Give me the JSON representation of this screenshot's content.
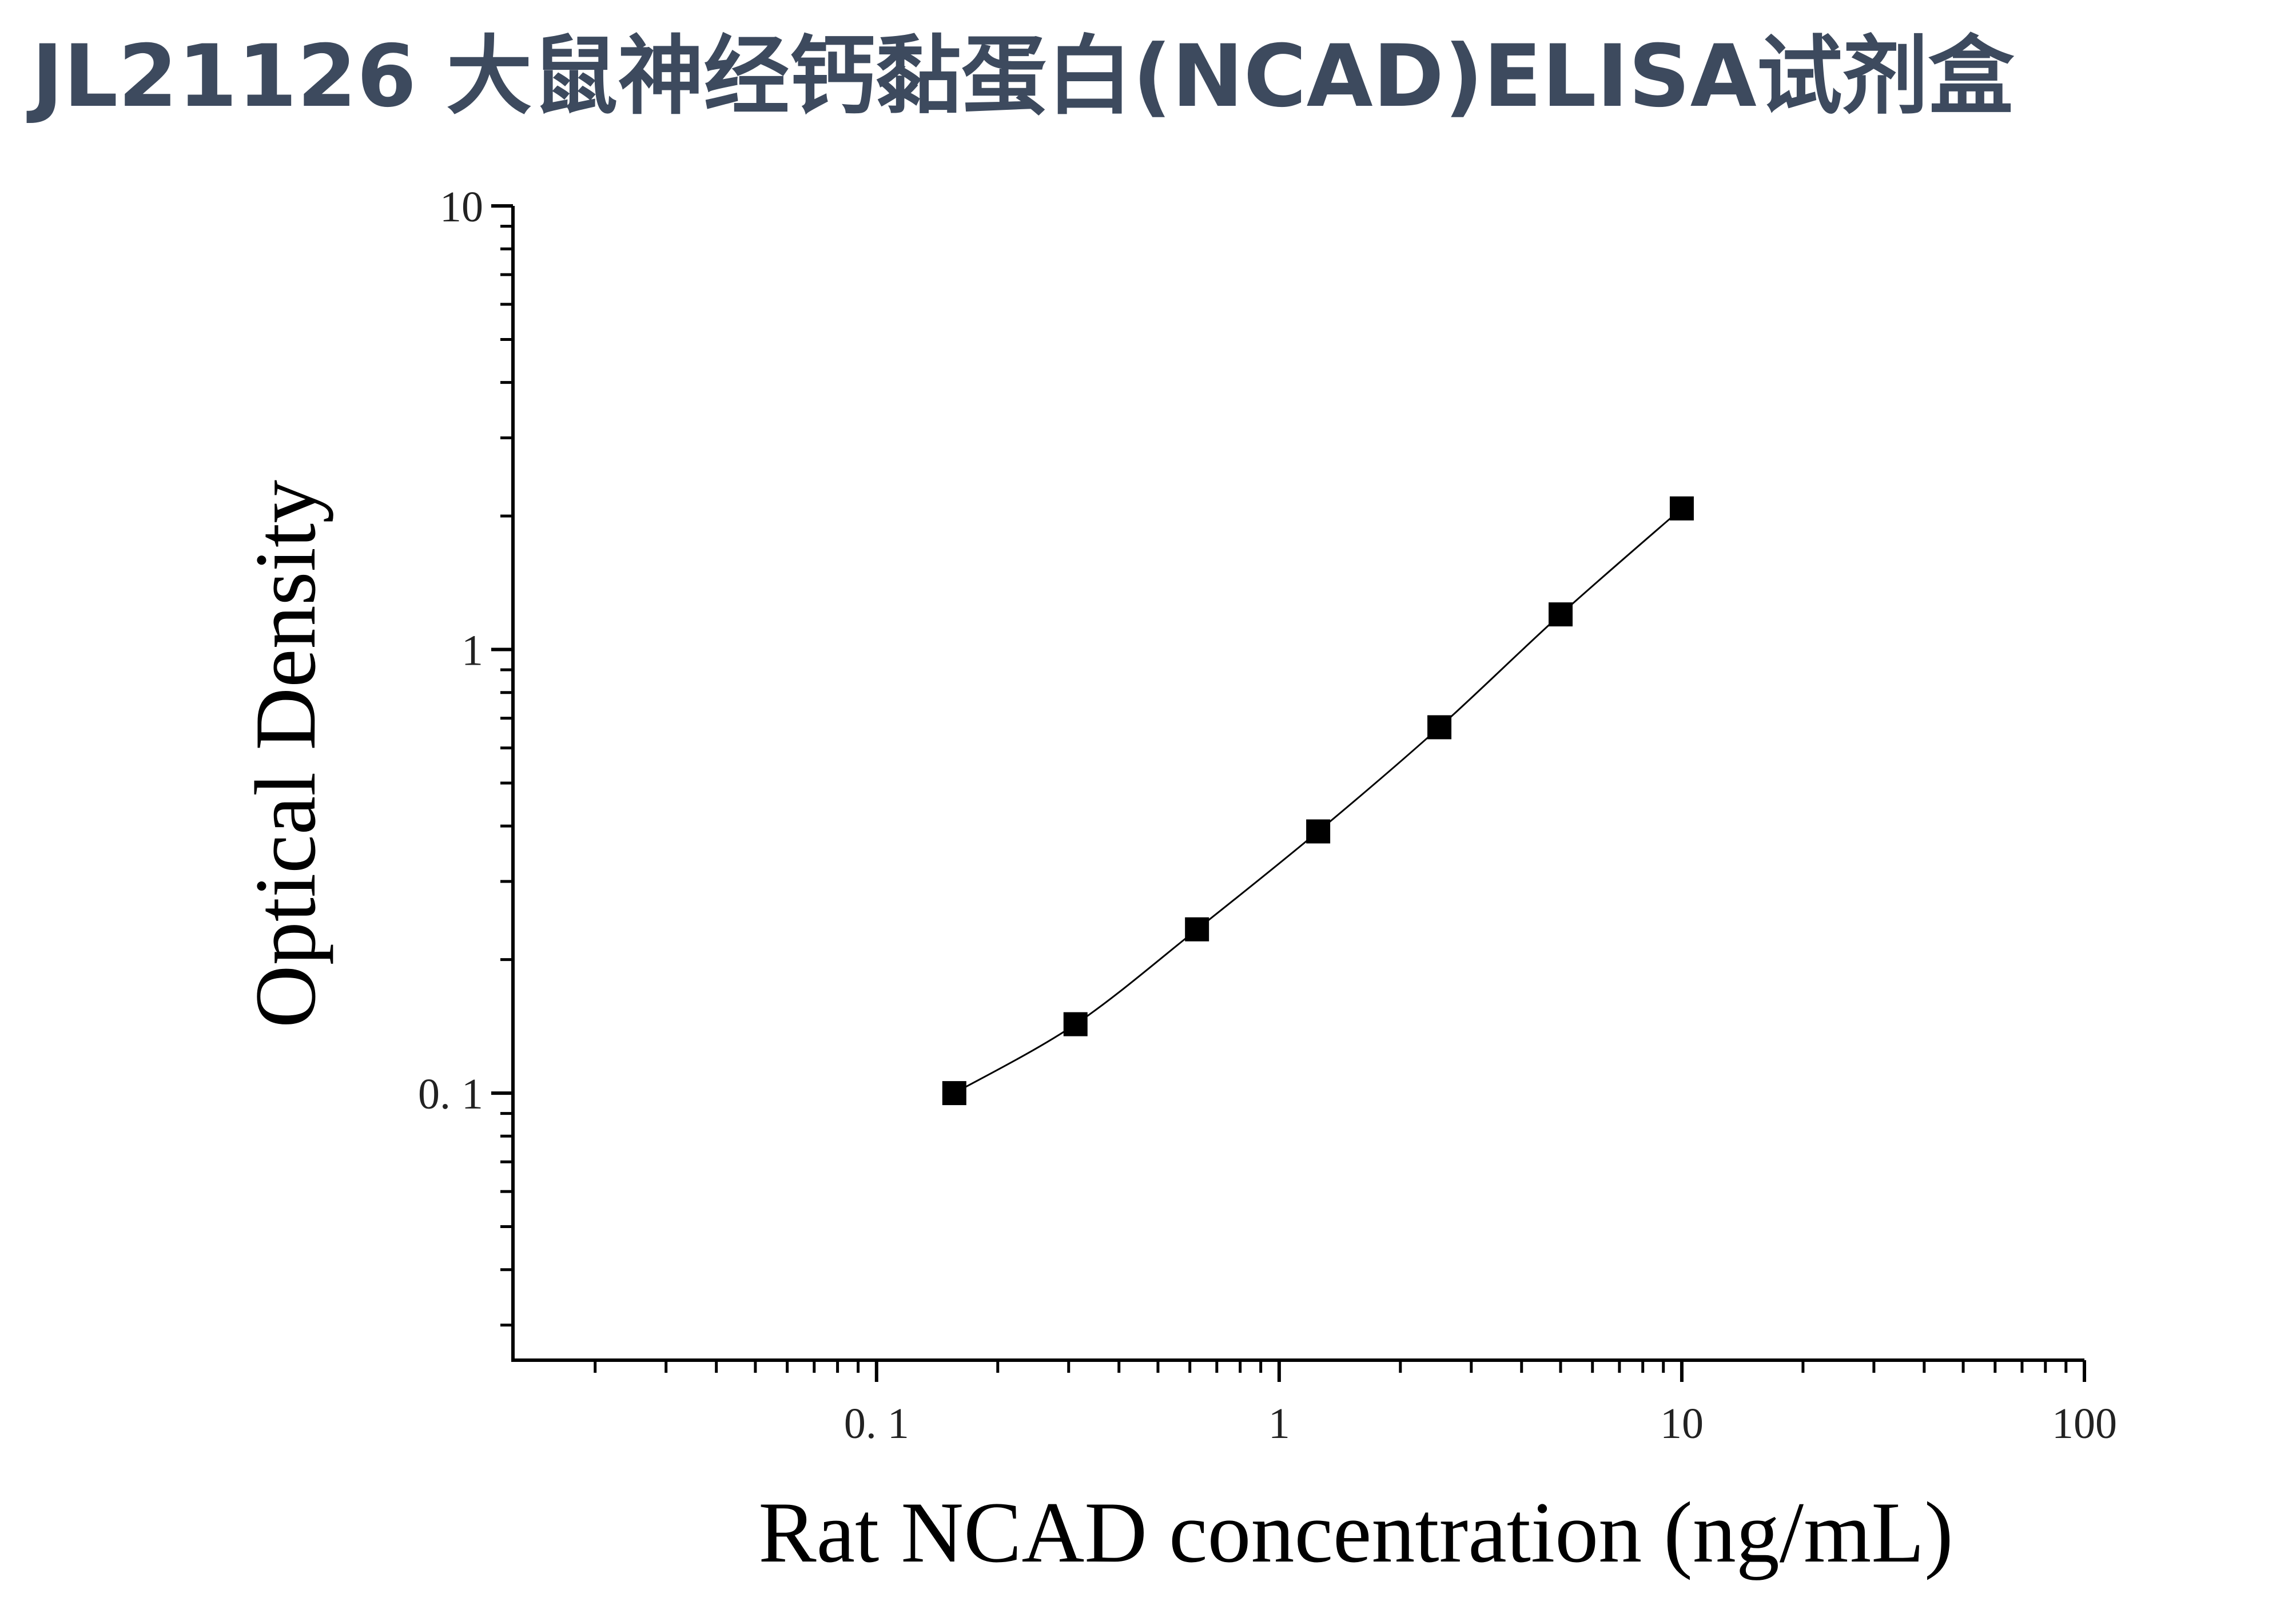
{
  "page": {
    "title": "JL21126 大鼠神经钙黏蛋白(NCAD)ELISA试剂盒",
    "title_color": "#3d4a5e"
  },
  "chart_data": {
    "type": "scatter",
    "title": "",
    "xlabel": "Rat NCAD concentration (ng/mL)",
    "ylabel": "Optical Density",
    "x_scale": "log",
    "y_scale": "log",
    "xlim": [
      0.0125,
      100
    ],
    "ylim": [
      0.025,
      10
    ],
    "x_ticks": [
      {
        "value": 0.1,
        "label": "0. 1"
      },
      {
        "value": 1,
        "label": "1"
      },
      {
        "value": 10,
        "label": "10"
      },
      {
        "value": 100,
        "label": "100"
      }
    ],
    "y_ticks": [
      {
        "value": 0.1,
        "label": "0. 1"
      },
      {
        "value": 1,
        "label": "1"
      },
      {
        "value": 10,
        "label": "10"
      }
    ],
    "grid": false,
    "legend": "none",
    "series": [
      {
        "marker": "square",
        "color": "#000000",
        "fit_line": "smooth",
        "points": [
          {
            "x": 0.156,
            "y": 0.1
          },
          {
            "x": 0.312,
            "y": 0.143
          },
          {
            "x": 0.625,
            "y": 0.234
          },
          {
            "x": 1.25,
            "y": 0.389
          },
          {
            "x": 2.5,
            "y": 0.668
          },
          {
            "x": 5,
            "y": 1.2
          },
          {
            "x": 10,
            "y": 2.08
          }
        ]
      }
    ]
  }
}
